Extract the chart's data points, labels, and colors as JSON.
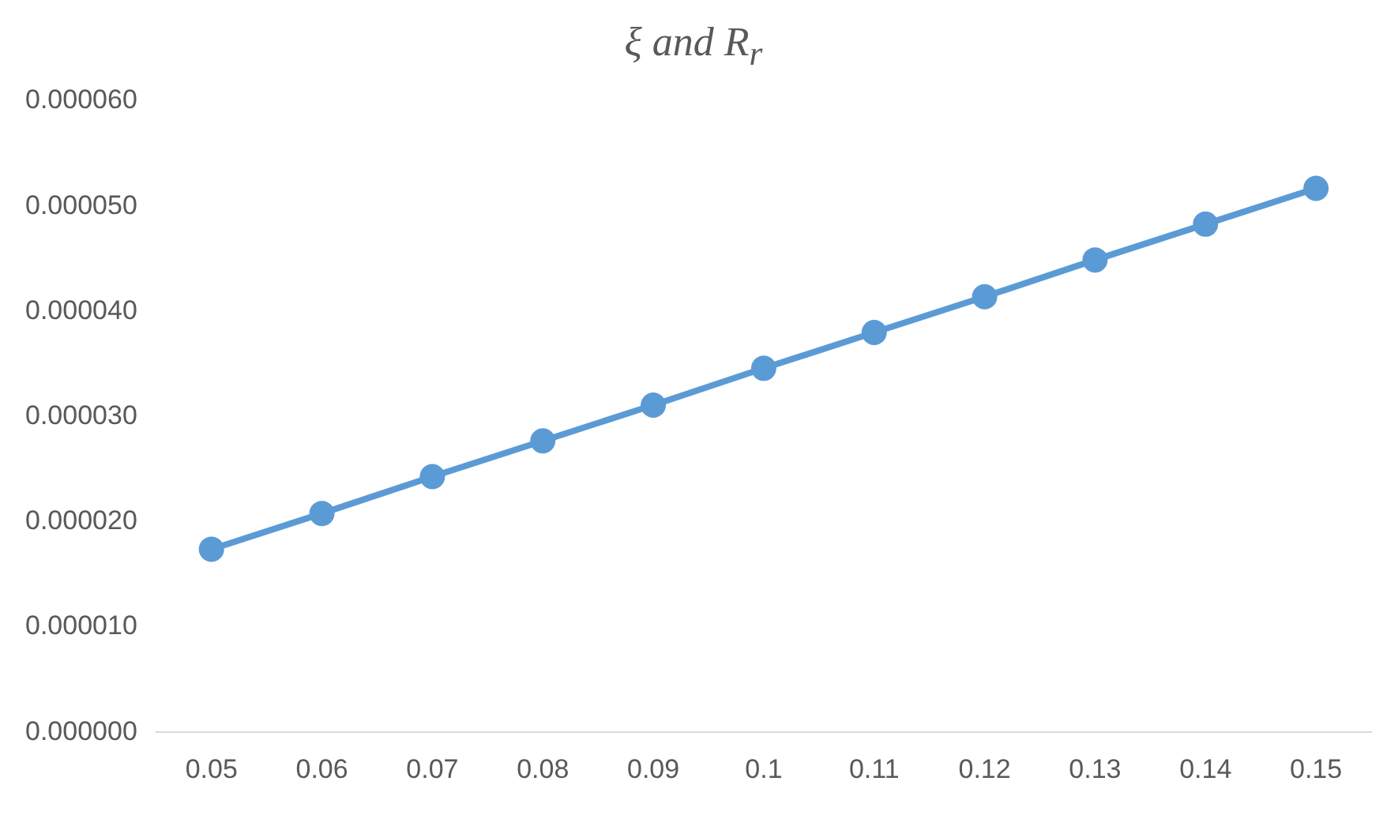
{
  "chart_data": {
    "type": "line",
    "title": "ξ and R$_{r}$",
    "categories": [
      "0.05",
      "0.06",
      "0.07",
      "0.08",
      "0.09",
      "0.1",
      "0.11",
      "0.12",
      "0.13",
      "0.14",
      "0.15"
    ],
    "series": [
      {
        "color": "#5b9bd5",
        "values": [
          1.74e-05,
          2.08e-05,
          2.43e-05,
          2.77e-05,
          3.11e-05,
          3.46e-05,
          3.8e-05,
          4.14e-05,
          4.49e-05,
          4.83e-05,
          5.17e-05
        ]
      }
    ],
    "ylim": [
      0,
      6e-05
    ],
    "yticks": [
      {
        "value": 0,
        "label": "0.000000"
      },
      {
        "value": 1e-05,
        "label": "0.000010"
      },
      {
        "value": 2e-05,
        "label": "0.000020"
      },
      {
        "value": 3e-05,
        "label": "0.000030"
      },
      {
        "value": 4e-05,
        "label": "0.000040"
      },
      {
        "value": 5e-05,
        "label": "0.000050"
      },
      {
        "value": 6e-05,
        "label": "0.000060"
      }
    ],
    "grid": false,
    "legend": false,
    "marker": "circle",
    "line_style": "solid"
  }
}
